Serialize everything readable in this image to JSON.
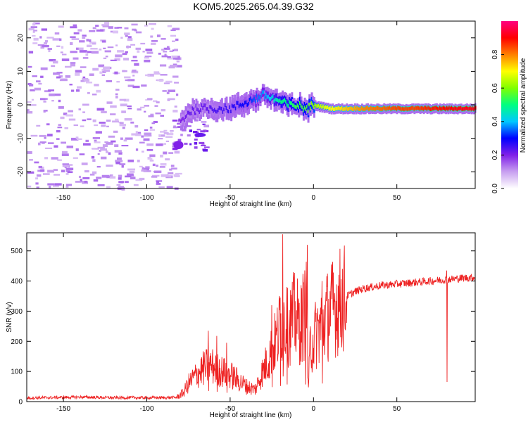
{
  "title": "KOM5.2025.265.04.39.G32",
  "chart_data": [
    {
      "type": "heatmap",
      "title": "KOM5.2025.265.04.39.G32",
      "xlabel": "Height of straight line (km)",
      "ylabel": "Frequency (Hz)",
      "xlim": [
        -172,
        97
      ],
      "ylim": [
        -25,
        25
      ],
      "x_ticks": [
        -150,
        -100,
        -50,
        0,
        50
      ],
      "y_ticks": [
        -20,
        -10,
        0,
        10,
        20
      ],
      "colorbar": {
        "label": "Normalized spectral amplitude",
        "range": [
          0,
          1
        ],
        "ticks": [
          "0.0",
          "0.2",
          "0.4",
          "0.6",
          "0.8"
        ],
        "colors": [
          "#ffffff",
          "#c8a0f0",
          "#8020e8",
          "#0000ff",
          "#00c8ff",
          "#00ff80",
          "#80ff00",
          "#ffff00",
          "#ff8000",
          "#ff0000",
          "#ff0080"
        ]
      },
      "ridge": {
        "x": [
          -80,
          -75,
          -70,
          -65,
          -60,
          -55,
          -50,
          -45,
          -40,
          -35,
          -30,
          -25,
          -20,
          -15,
          -10,
          -5,
          0,
          10,
          20,
          30,
          40,
          50,
          60,
          70,
          80,
          90,
          97
        ],
        "freq": [
          -5,
          -2,
          -1,
          -1,
          -1,
          -1,
          -1,
          0,
          1,
          2,
          3,
          2,
          1,
          0,
          0,
          -1,
          0,
          -1,
          -1,
          -1,
          -1,
          -1,
          -1,
          -1,
          -1,
          -1,
          -1
        ],
        "amplitude": [
          0.2,
          0.22,
          0.22,
          0.22,
          0.24,
          0.25,
          0.26,
          0.28,
          0.3,
          0.35,
          0.38,
          0.42,
          0.5,
          0.5,
          0.55,
          0.55,
          0.62,
          0.7,
          0.75,
          0.8,
          0.82,
          0.85,
          0.85,
          0.88,
          0.9,
          0.92,
          0.92
        ]
      },
      "noise_region": {
        "x_range": [
          -172,
          -82
        ],
        "amplitude": 0.1
      }
    },
    {
      "type": "line",
      "xlabel": "Height of straight line (km)",
      "ylabel": "SNR (v/v)",
      "xlim": [
        -172,
        97
      ],
      "ylim": [
        0,
        560
      ],
      "x_ticks": [
        -150,
        -100,
        -50,
        0,
        50
      ],
      "y_ticks": [
        0,
        100,
        200,
        300,
        400,
        500
      ],
      "series": [
        {
          "name": "SNR",
          "color": "#ee2222",
          "x": [
            -172,
            -160,
            -150,
            -140,
            -130,
            -120,
            -110,
            -100,
            -90,
            -82,
            -78,
            -75,
            -70,
            -66,
            -62,
            -58,
            -55,
            -50,
            -45,
            -40,
            -35,
            -32,
            -28,
            -25,
            -22,
            -20,
            -18,
            -16,
            -14,
            -12,
            -10,
            -8,
            -6,
            -4,
            -3,
            -2,
            0,
            3,
            6,
            10,
            15,
            20,
            25,
            30,
            40,
            50,
            60,
            70,
            80,
            90,
            97
          ],
          "y": [
            12,
            13,
            14,
            15,
            14,
            13,
            13,
            13,
            13,
            14,
            30,
            60,
            90,
            110,
            120,
            110,
            100,
            90,
            70,
            50,
            40,
            80,
            130,
            170,
            210,
            250,
            270,
            240,
            260,
            280,
            270,
            250,
            290,
            310,
            40,
            180,
            210,
            240,
            270,
            300,
            330,
            350,
            365,
            375,
            385,
            390,
            395,
            400,
            405,
            410,
            412
          ],
          "spikes": [
            {
              "x": -18.5,
              "y": 555
            },
            {
              "x": -3.8,
              "y": 520
            },
            {
              "x": -16,
              "y": 380
            },
            {
              "x": -25,
              "y": 320
            },
            {
              "x": -20,
              "y": 345
            },
            {
              "x": -63,
              "y": 235
            },
            {
              "x": -58,
              "y": 218
            },
            {
              "x": -52,
              "y": 195
            },
            {
              "x": -5,
              "y": 380
            },
            {
              "x": 5,
              "y": 400
            },
            {
              "x": 80,
              "y": 435
            }
          ]
        }
      ]
    }
  ]
}
